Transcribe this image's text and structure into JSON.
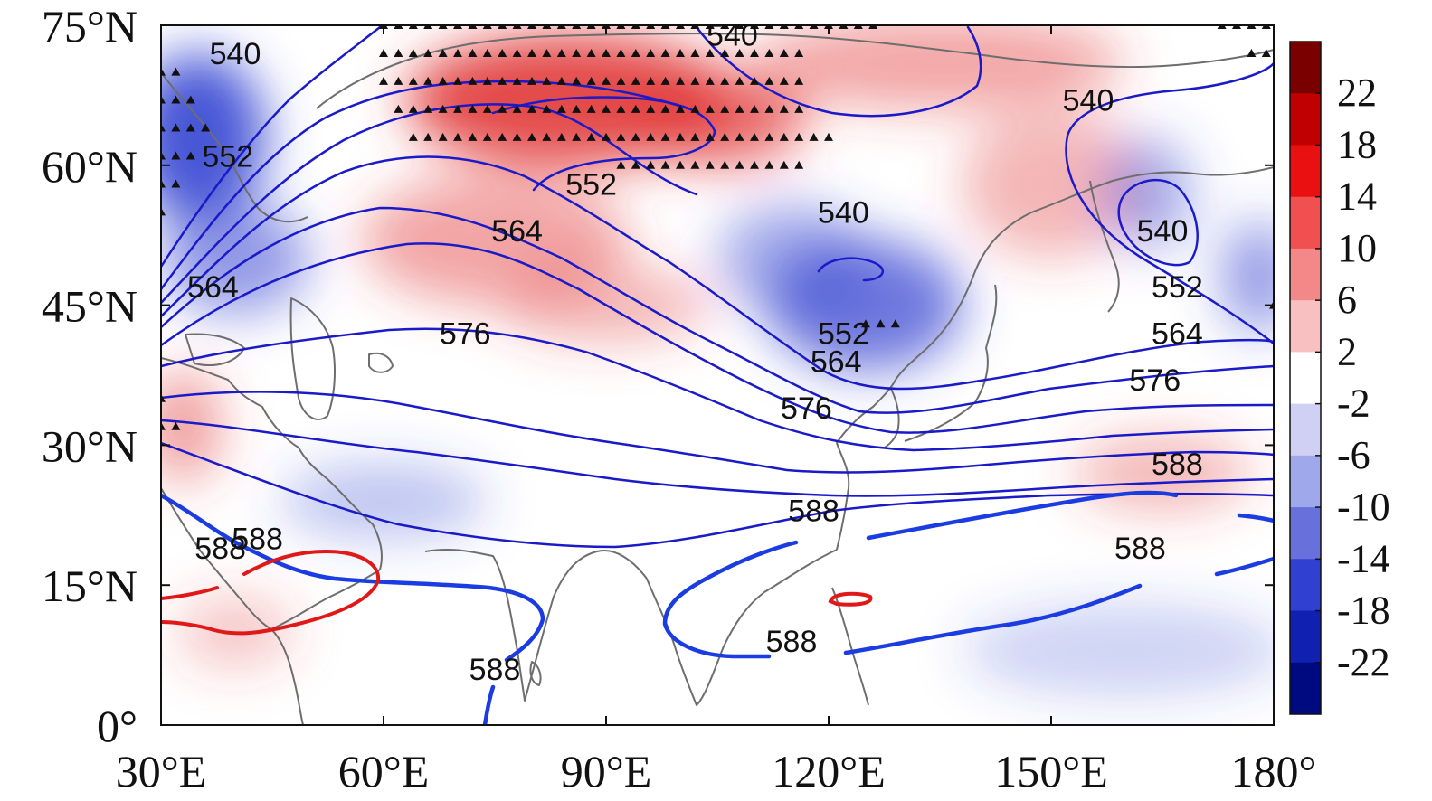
{
  "map": {
    "projection": "equirectangular",
    "lon_range": [
      30,
      180
    ],
    "lat_range": [
      0,
      75
    ],
    "x_ticks": [
      {
        "lon": 30,
        "label": "30°E"
      },
      {
        "lon": 60,
        "label": "60°E"
      },
      {
        "lon": 90,
        "label": "90°E"
      },
      {
        "lon": 120,
        "label": "120°E"
      },
      {
        "lon": 150,
        "label": "150°E"
      },
      {
        "lon": 180,
        "label": "180°"
      }
    ],
    "y_ticks": [
      {
        "lat": 0,
        "label": "0°"
      },
      {
        "lat": 15,
        "label": "15°N"
      },
      {
        "lat": 30,
        "label": "30°N"
      },
      {
        "lat": 45,
        "label": "45°N"
      },
      {
        "lat": 60,
        "label": "60°N"
      },
      {
        "lat": 75,
        "label": "75°N"
      }
    ]
  },
  "colorbar": {
    "labels": [
      "22",
      "18",
      "14",
      "10",
      "6",
      "2",
      "-2",
      "-6",
      "-10",
      "-14",
      "-18",
      "-22"
    ],
    "colors": [
      "#7a0000",
      "#c00000",
      "#e81010",
      "#f05050",
      "#f48888",
      "#f8c0c0",
      "#ffffff",
      "#d0d0f4",
      "#a0a8ec",
      "#6870dc",
      "#3040d0",
      "#1020b0",
      "#000a80"
    ],
    "range": [
      -22,
      22
    ]
  },
  "anomaly_fields": {
    "positive_color": "#e23a3a",
    "negative_color": "#3848d2",
    "centers": [
      {
        "lon": 85,
        "lat": 67,
        "value": 18,
        "rx": 22,
        "ry": 7
      },
      {
        "lon": 105,
        "lat": 65,
        "value": 14,
        "rx": 12,
        "ry": 5
      },
      {
        "lon": 135,
        "lat": 71,
        "value": 8,
        "rx": 25,
        "ry": 5
      },
      {
        "lon": 150,
        "lat": 58,
        "value": 6,
        "rx": 12,
        "ry": 8
      },
      {
        "lon": 75,
        "lat": 52,
        "value": 8,
        "rx": 18,
        "ry": 7
      },
      {
        "lon": 90,
        "lat": 45,
        "value": 6,
        "rx": 14,
        "ry": 4
      },
      {
        "lon": 33,
        "lat": 32,
        "value": 9,
        "rx": 5,
        "ry": 6
      },
      {
        "lon": 40,
        "lat": 10,
        "value": 4,
        "rx": 8,
        "ry": 4
      },
      {
        "lon": 165,
        "lat": 27,
        "value": 6,
        "rx": 12,
        "ry": 4
      },
      {
        "lon": 35,
        "lat": 63,
        "value": -18,
        "rx": 9,
        "ry": 9
      },
      {
        "lon": 40,
        "lat": 50,
        "value": -10,
        "rx": 10,
        "ry": 6
      },
      {
        "lon": 125,
        "lat": 45,
        "value": -14,
        "rx": 13,
        "ry": 7
      },
      {
        "lon": 115,
        "lat": 50,
        "value": -8,
        "rx": 10,
        "ry": 6
      },
      {
        "lon": 163,
        "lat": 57,
        "value": -8,
        "rx": 6,
        "ry": 6
      },
      {
        "lon": 178,
        "lat": 48,
        "value": -10,
        "rx": 5,
        "ry": 6
      },
      {
        "lon": 60,
        "lat": 24,
        "value": -5,
        "rx": 14,
        "ry": 4
      },
      {
        "lon": 160,
        "lat": 8,
        "value": -3,
        "rx": 22,
        "ry": 5
      }
    ]
  },
  "contours": {
    "line_color": "#1a1ac8",
    "highlight_color": "#e01818",
    "levels": [
      {
        "value": "540",
        "label_pos": [
          [
            40,
            72
          ],
          [
            107,
            74
          ],
          [
            155,
            67
          ],
          [
            122,
            55
          ],
          [
            165,
            53
          ]
        ]
      },
      {
        "value": "552",
        "label_pos": [
          [
            39,
            61
          ],
          [
            88,
            58
          ],
          [
            122,
            42
          ],
          [
            167,
            47
          ]
        ]
      },
      {
        "value": "564",
        "label_pos": [
          [
            78,
            53
          ],
          [
            37,
            47
          ],
          [
            121,
            39
          ],
          [
            167,
            42
          ]
        ]
      },
      {
        "value": "576",
        "label_pos": [
          [
            71,
            42
          ],
          [
            117,
            34
          ],
          [
            164,
            37
          ]
        ]
      },
      {
        "value": "588",
        "label_pos": [
          [
            43,
            20
          ],
          [
            118,
            23
          ],
          [
            167,
            28
          ],
          [
            162,
            19
          ],
          [
            115,
            9
          ],
          [
            75,
            6
          ]
        ]
      }
    ],
    "highlight_level": {
      "value": "588",
      "label_pos": [
        [
          38,
          19
        ]
      ]
    }
  },
  "significance": {
    "marker": "▲",
    "rows": [
      {
        "lat": 75,
        "lon_from": 60,
        "lon_to": 127,
        "step": 2
      },
      {
        "lat": 72,
        "lon_from": 60,
        "lon_to": 116,
        "step": 2
      },
      {
        "lat": 69,
        "lon_from": 60,
        "lon_to": 116,
        "step": 2
      },
      {
        "lat": 66,
        "lon_from": 62,
        "lon_to": 116,
        "step": 2
      },
      {
        "lat": 63,
        "lon_from": 64,
        "lon_to": 121,
        "step": 2
      },
      {
        "lat": 60,
        "lon_from": 92,
        "lon_to": 116,
        "step": 2
      },
      {
        "lat": 70,
        "lon_from": 30,
        "lon_to": 32,
        "step": 2
      },
      {
        "lat": 67,
        "lon_from": 30,
        "lon_to": 34,
        "step": 2
      },
      {
        "lat": 64,
        "lon_from": 30,
        "lon_to": 36,
        "step": 2
      },
      {
        "lat": 61,
        "lon_from": 30,
        "lon_to": 34,
        "step": 2
      },
      {
        "lat": 58,
        "lon_from": 30,
        "lon_to": 32,
        "step": 2
      },
      {
        "lat": 55,
        "lon_from": 30,
        "lon_to": 30,
        "step": 2
      },
      {
        "lat": 43,
        "lon_from": 125,
        "lon_to": 129,
        "step": 2
      },
      {
        "lat": 35,
        "lon_from": 30,
        "lon_to": 30,
        "step": 2
      },
      {
        "lat": 32,
        "lon_from": 30,
        "lon_to": 32,
        "step": 2
      },
      {
        "lat": 75,
        "lon_from": 173,
        "lon_to": 179,
        "step": 2
      },
      {
        "lat": 72,
        "lon_from": 177,
        "lon_to": 179,
        "step": 2
      },
      {
        "lat": 45,
        "lon_from": 180,
        "lon_to": 180,
        "step": 2
      }
    ]
  }
}
